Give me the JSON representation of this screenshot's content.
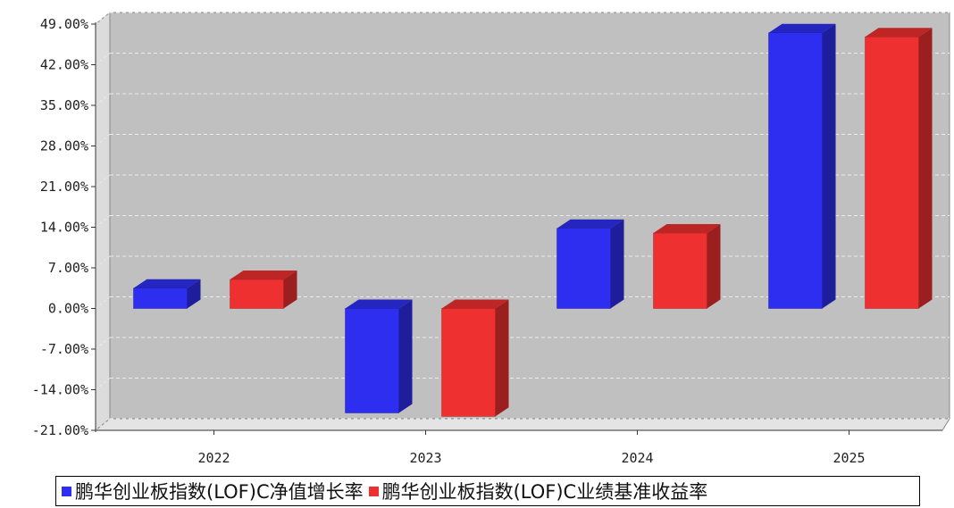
{
  "chart_data": {
    "type": "bar",
    "categories": [
      "2022",
      "2023",
      "2024",
      "2025"
    ],
    "series": [
      {
        "name": "鹏华创业板指数(LOF)C净值增长率",
        "color": "#2e2ef0",
        "values": [
          3.5,
          -18.0,
          13.8,
          47.5
        ]
      },
      {
        "name": "鹏华创业板指数(LOF)C业绩基准收益率",
        "color": "#ee3030",
        "values": [
          5.0,
          -18.6,
          13.0,
          46.8
        ]
      }
    ],
    "ylim": [
      -21,
      49
    ],
    "yticks": [
      "49.00%",
      "42.00%",
      "35.00%",
      "28.00%",
      "21.00%",
      "14.00%",
      "7.00%",
      "0.00%",
      "-7.00%",
      "-14.00%",
      "-21.00%"
    ],
    "ytick_values": [
      49,
      42,
      35,
      28,
      21,
      14,
      7,
      0,
      -7,
      -14,
      -21
    ],
    "grid": true,
    "legend_position": "bottom",
    "plot_background": "#c0c0c0"
  }
}
